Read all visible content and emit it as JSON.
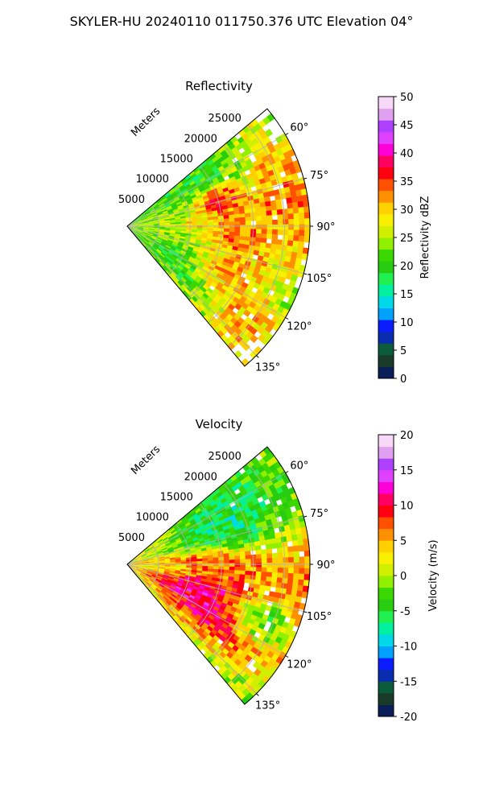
{
  "figure": {
    "title": "SKYLER-HU  20240110  011750.376 UTC Elevation 04°"
  },
  "chart_data": [
    {
      "type": "heatmap",
      "projection": "polar-sector",
      "title": "Reflectivity",
      "radial_label": "Meters",
      "range_ticks": [
        "5000",
        "10000",
        "15000",
        "20000",
        "25000"
      ],
      "range_max": 29000,
      "azimuth_range": [
        50,
        140
      ],
      "azimuth_ticks": [
        "60°",
        "75°",
        "90°",
        "105°",
        "120°",
        "135°"
      ],
      "grid": true,
      "colorbar": {
        "label": "Reflectivity dBZ",
        "min": 0,
        "max": 50,
        "ticks": [
          "0",
          "5",
          "10",
          "15",
          "20",
          "25",
          "30",
          "35",
          "40",
          "45",
          "50"
        ],
        "colormap": [
          "#0a1e5a",
          "#1a3a2a",
          "#0b5c3a",
          "#0a2cb0",
          "#0b1cff",
          "#00a0ff",
          "#00d8e8",
          "#00f0a0",
          "#20f050",
          "#28cc10",
          "#3ad800",
          "#90f000",
          "#d0f000",
          "#f8f000",
          "#ffd000",
          "#ff9000",
          "#ff5000",
          "#ff0010",
          "#ff0060",
          "#ff00d8",
          "#e040ff",
          "#b040ff",
          "#e0a0f0",
          "#f8d8f8"
        ]
      },
      "features": [
        {
          "name": "outer-rim-high",
          "az": [
            55,
            95
          ],
          "r": [
            0.72,
            1.0
          ],
          "value": 33
        },
        {
          "name": "core-north",
          "az": [
            68,
            80
          ],
          "r": [
            0.42,
            0.62
          ],
          "value": 40
        },
        {
          "name": "band-central",
          "az": [
            82,
            102
          ],
          "r": [
            0.5,
            0.7
          ],
          "value": 35
        },
        {
          "name": "band-south",
          "az": [
            100,
            125
          ],
          "r": [
            0.45,
            0.8
          ],
          "value": 34
        },
        {
          "name": "edge-south",
          "az": [
            118,
            140
          ],
          "r": [
            0.65,
            1.0
          ],
          "value": 33
        },
        {
          "name": "near-field",
          "az": [
            55,
            140
          ],
          "r": [
            0.0,
            0.25
          ],
          "value": 24
        }
      ]
    },
    {
      "type": "heatmap",
      "projection": "polar-sector",
      "title": "Velocity",
      "radial_label": "Meters",
      "range_ticks": [
        "5000",
        "10000",
        "15000",
        "20000",
        "25000"
      ],
      "range_max": 29000,
      "azimuth_range": [
        50,
        140
      ],
      "azimuth_ticks": [
        "60°",
        "75°",
        "90°",
        "105°",
        "120°",
        "135°"
      ],
      "grid": true,
      "colorbar": {
        "label": "Velocity (m/s)",
        "min": -20,
        "max": 20,
        "ticks": [
          "-20",
          "-15",
          "-10",
          "-5",
          "0",
          "5",
          "10",
          "15",
          "20"
        ],
        "colormap": [
          "#0a1e5a",
          "#1a3a2a",
          "#0b5c3a",
          "#0a2cb0",
          "#0b1cff",
          "#00a0ff",
          "#00d8e8",
          "#00f0a0",
          "#20f050",
          "#28cc10",
          "#3ad800",
          "#90f000",
          "#d0f000",
          "#f8f000",
          "#ffd000",
          "#ff9000",
          "#ff5000",
          "#ff0010",
          "#ff0060",
          "#ff00d8",
          "#e040ff",
          "#b040ff",
          "#e0a0f0",
          "#f8d8f8"
        ]
      },
      "features": [
        {
          "name": "inbound-north",
          "az": [
            50,
            85
          ],
          "r": [
            0.3,
            0.85
          ],
          "value": -8
        },
        {
          "name": "outbound-center",
          "az": [
            80,
            96
          ],
          "r": [
            0.1,
            0.75
          ],
          "value": 10
        },
        {
          "name": "outbound-south",
          "az": [
            100,
            130
          ],
          "r": [
            0.15,
            0.8
          ],
          "value": 14
        },
        {
          "name": "inbound-southeast",
          "az": [
            105,
            120
          ],
          "r": [
            0.6,
            0.95
          ],
          "value": -9
        },
        {
          "name": "near-field",
          "az": [
            85,
            100
          ],
          "r": [
            0.0,
            0.35
          ],
          "value": 1
        }
      ]
    }
  ]
}
